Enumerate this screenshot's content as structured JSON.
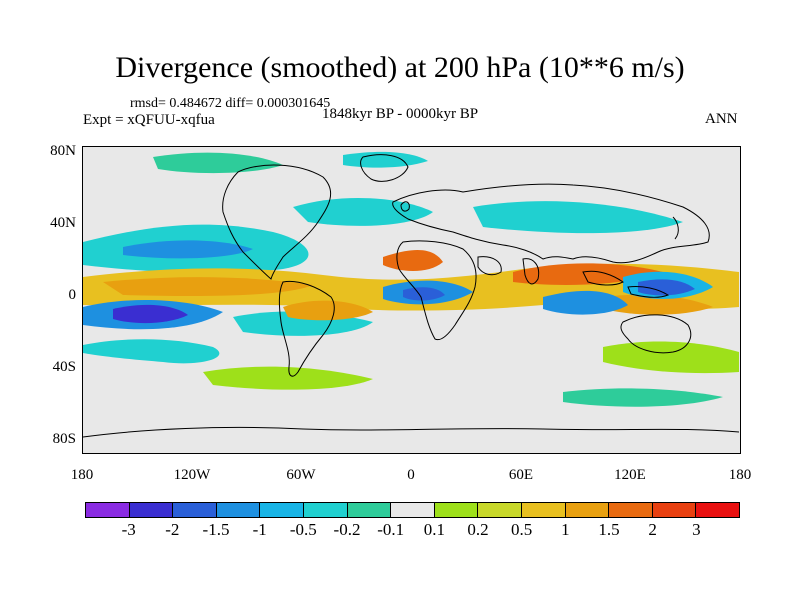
{
  "title": "Divergence (smoothed) at 200 hPa (10**6 m/s)",
  "stats": "rmsd= 0.484672 diff= 0.000301645",
  "experiment": "Expt = xQFUU-xqfua",
  "period": "1848kyr BP - 0000kyr BP",
  "season": "ANN",
  "y_axis_labels": [
    "80N",
    "40N",
    "0",
    "40S",
    "80S"
  ],
  "x_axis_labels": [
    "180",
    "120W",
    "60W",
    "0",
    "60E",
    "120E",
    "180"
  ],
  "colorbar": {
    "colors": [
      "#8a2be2",
      "#3a2ed1",
      "#2a5fd8",
      "#1e90e0",
      "#18b4e6",
      "#20d0d0",
      "#2ecc9a",
      "#e8e8e8",
      "#9ee01a",
      "#c8d82a",
      "#e8c020",
      "#e8a010",
      "#e86a10",
      "#e84010",
      "#e81010"
    ],
    "labels": [
      "-3",
      "-2",
      "-1.5",
      "-1",
      "-0.5",
      "-0.2",
      "-0.1",
      "0.1",
      "0.2",
      "0.5",
      "1",
      "1.5",
      "2",
      "3"
    ]
  },
  "map_data": {
    "projection": "cylindrical equidistant",
    "lon_range": [
      -180,
      180
    ],
    "lat_range": [
      -90,
      90
    ],
    "variable": "Divergence (smoothed) at 200 hPa",
    "units": "10**6 m/s"
  }
}
